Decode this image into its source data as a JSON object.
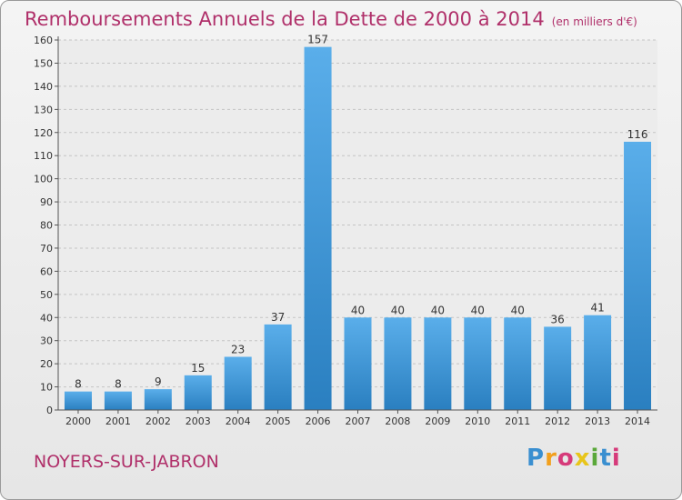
{
  "header": {
    "title": "Remboursements Annuels de la Dette de 2000 à 2014",
    "subtitle": "(en milliers d'€)"
  },
  "footer": {
    "commune": "NOYERS-SUR-JABRON",
    "logo": "Proxiti",
    "logo_colors": [
      "#3a8fd0",
      "#f2a01d",
      "#d63a7a",
      "#e8c51a",
      "#5aa83a",
      "#3a8fd0",
      "#d63a7a"
    ]
  },
  "chart_data": {
    "type": "bar",
    "title": "Remboursements Annuels de la Dette de 2000 à 2014",
    "subtitle": "(en milliers d'€)",
    "xlabel": "",
    "ylabel": "",
    "categories": [
      "2000",
      "2001",
      "2002",
      "2003",
      "2004",
      "2005",
      "2006",
      "2007",
      "2008",
      "2009",
      "2010",
      "2011",
      "2012",
      "2013",
      "2014"
    ],
    "values": [
      8,
      8,
      9,
      15,
      23,
      37,
      157,
      40,
      40,
      40,
      40,
      40,
      36,
      41,
      116
    ],
    "ylim": [
      0,
      160
    ],
    "yticks": [
      0,
      10,
      20,
      30,
      40,
      50,
      60,
      70,
      80,
      90,
      100,
      110,
      120,
      130,
      140,
      150,
      160
    ],
    "grid": true,
    "bar_color": "#3d98d8"
  }
}
